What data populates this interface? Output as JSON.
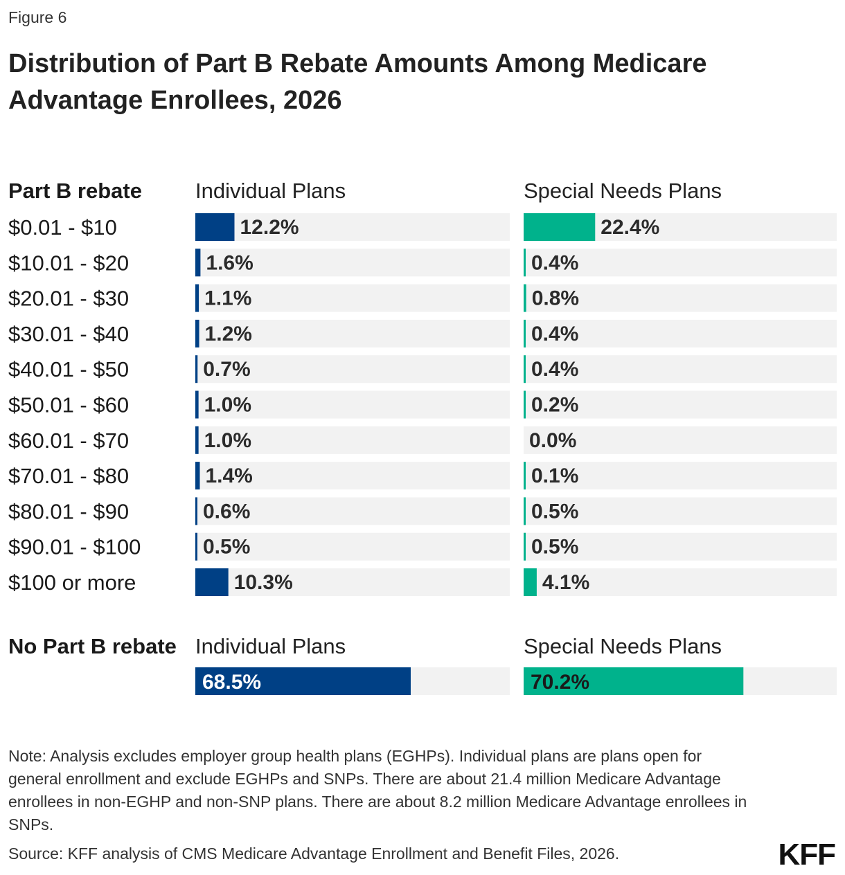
{
  "figure_label": "Figure 6",
  "title": "Distribution of Part B Rebate Amounts Among Medicare Advantage Enrollees, 2026",
  "colors": {
    "individual": "#004085",
    "snp": "#00B28C",
    "track": "#F2F2F2"
  },
  "chart_data": [
    {
      "type": "bar",
      "orientation": "horizontal",
      "row_header": "Part B rebate",
      "categories": [
        "$0.01 - $10",
        "$10.01 - $20",
        "$20.01 - $30",
        "$30.01 - $40",
        "$40.01 - $50",
        "$50.01 - $60",
        "$60.01 - $70",
        "$70.01 - $80",
        "$80.01 - $90",
        "$90.01 - $100",
        "$100 or more"
      ],
      "series": [
        {
          "name": "Individual Plans",
          "values": [
            12.2,
            1.6,
            1.1,
            1.2,
            0.7,
            1.0,
            1.0,
            1.4,
            0.6,
            0.5,
            10.3
          ],
          "labels": [
            "12.2%",
            "1.6%",
            "1.1%",
            "1.2%",
            "0.7%",
            "1.0%",
            "1.0%",
            "1.4%",
            "0.6%",
            "0.5%",
            "10.3%"
          ]
        },
        {
          "name": "Special Needs Plans",
          "values": [
            22.4,
            0.4,
            0.8,
            0.4,
            0.4,
            0.2,
            0.0,
            0.1,
            0.5,
            0.5,
            4.1
          ],
          "labels": [
            "22.4%",
            "0.4%",
            "0.8%",
            "0.4%",
            "0.4%",
            "0.2%",
            "0.0%",
            "0.1%",
            "0.5%",
            "0.5%",
            "4.1%"
          ]
        }
      ],
      "xlim": [
        0,
        100
      ]
    },
    {
      "type": "bar",
      "orientation": "horizontal",
      "row_header": "No Part B rebate",
      "categories": [
        ""
      ],
      "series": [
        {
          "name": "Individual Plans",
          "values": [
            68.5
          ],
          "labels": [
            "68.5%"
          ]
        },
        {
          "name": "Special Needs Plans",
          "values": [
            70.2
          ],
          "labels": [
            "70.2%"
          ]
        }
      ],
      "xlim": [
        0,
        100
      ]
    }
  ],
  "note": "Note: Analysis excludes employer group health plans (EGHPs). Individual plans are plans open for general enrollment and exclude EGHPs and SNPs. There are about 21.4 million Medicare Advantage enrollees in non-EGHP and non-SNP plans. There are about 8.2 million Medicare Advantage enrollees in SNPs.",
  "source": "Source: KFF analysis of CMS Medicare Advantage Enrollment and Benefit Files, 2026.",
  "logo_text": "KFF"
}
